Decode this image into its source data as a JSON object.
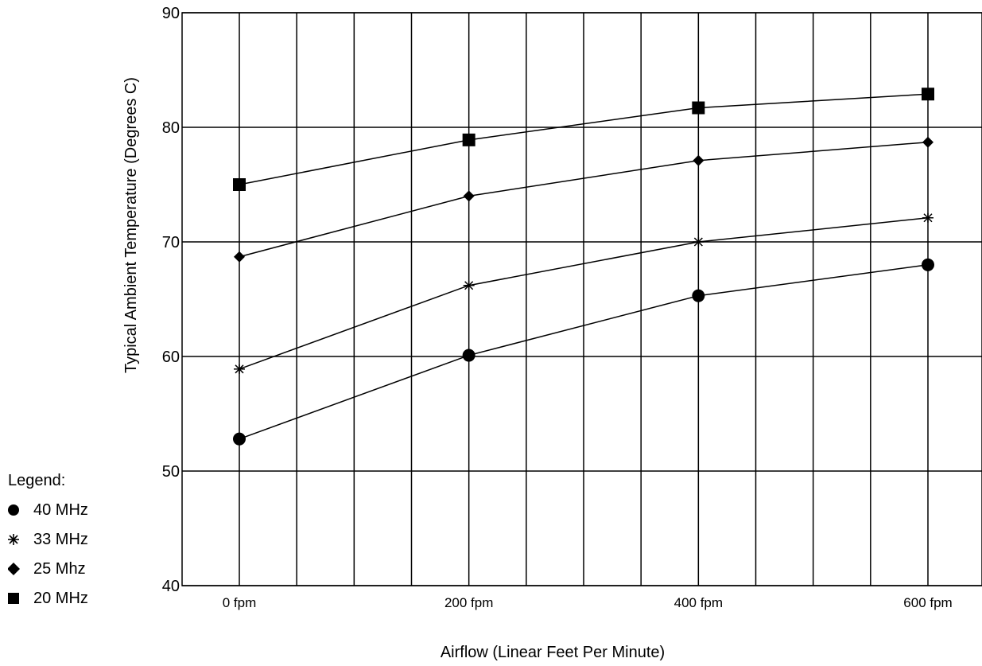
{
  "chart_data": {
    "type": "line",
    "x": [
      0,
      200,
      400,
      600
    ],
    "tick_labels_x": [
      "0 fpm",
      "200 fpm",
      "400 fpm",
      "600 fpm"
    ],
    "tick_labels_y": [
      "40",
      "50",
      "60",
      "70",
      "80",
      "90"
    ],
    "xlabel": "Airflow (Linear Feet Per Minute)",
    "ylabel": "Typical Ambient Temperature (Degrees C)",
    "ylim": [
      40,
      90
    ],
    "grid": true,
    "legend_position": "left",
    "series": [
      {
        "name": "40 MHz",
        "marker": "circle",
        "values": [
          52.8,
          60.1,
          65.3,
          68.0
        ]
      },
      {
        "name": "33 MHz",
        "marker": "asterisk",
        "values": [
          58.9,
          66.2,
          70.0,
          72.1
        ]
      },
      {
        "name": "25 Mhz",
        "marker": "diamond",
        "values": [
          68.7,
          74.0,
          77.1,
          78.7
        ]
      },
      {
        "name": "20 MHz",
        "marker": "square",
        "values": [
          75.0,
          78.9,
          81.7,
          82.9
        ]
      }
    ]
  },
  "legend": {
    "title": "Legend:",
    "items": [
      {
        "label": "40 MHz",
        "marker": "circle"
      },
      {
        "label": "33 MHz",
        "marker": "asterisk"
      },
      {
        "label": "25 Mhz",
        "marker": "diamond"
      },
      {
        "label": "20 MHz",
        "marker": "square"
      }
    ]
  },
  "colors": {
    "line": "#000000",
    "grid": "#000000",
    "background": "#ffffff"
  }
}
